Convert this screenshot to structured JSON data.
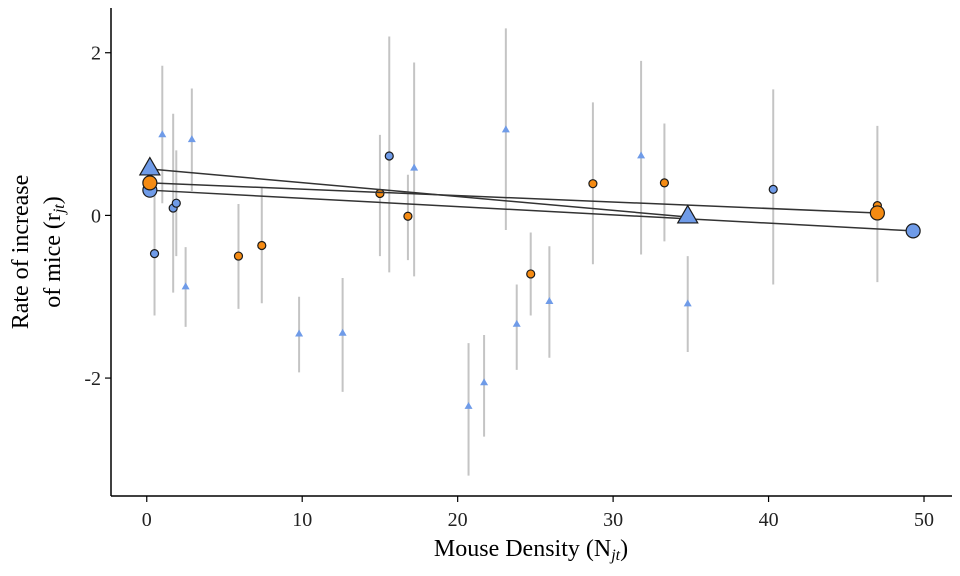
{
  "chart_data": {
    "type": "scatter",
    "xlabel": "Mouse Density (N",
    "xlabel_sub": "jt",
    "xlabel_end": ")",
    "ylabel_line1": "Rate of increase",
    "ylabel_line2": "of mice (r",
    "ylabel_sub": "jt",
    "ylabel_end": ")",
    "xlim": [
      -2.3,
      51.8
    ],
    "ylim": [
      -3.45,
      2.55
    ],
    "x_ticks": [
      0,
      10,
      20,
      30,
      40,
      50
    ],
    "x_tick_labels": [
      "0",
      "10",
      "20",
      "30",
      "40",
      "50"
    ],
    "y_ticks": [
      -2,
      0,
      2
    ],
    "y_tick_labels": [
      "-2",
      "0",
      "2"
    ],
    "grid": false,
    "colors": {
      "blue": "#6f9be8",
      "orange": "#f58b13",
      "error_bar": "#c4c4c4",
      "fit_line": "#333333"
    },
    "series": [
      {
        "marker": "circle",
        "color": "#6f9be8",
        "points": [
          {
            "x": 0.5,
            "y": -0.47,
            "lo": -1.23,
            "hi": 0.33
          },
          {
            "x": 1.7,
            "y": 0.09,
            "lo": -0.95,
            "hi": 1.25
          },
          {
            "x": 1.9,
            "y": 0.15,
            "lo": -0.5,
            "hi": 0.8
          },
          {
            "x": 15.6,
            "y": 0.73,
            "lo": -0.7,
            "hi": 2.2
          },
          {
            "x": 40.3,
            "y": 0.32,
            "lo": -0.85,
            "hi": 1.55
          }
        ]
      },
      {
        "marker": "circle",
        "color": "#f58b13",
        "points": [
          {
            "x": 5.9,
            "y": -0.5,
            "lo": -1.15,
            "hi": 0.14
          },
          {
            "x": 7.4,
            "y": -0.37,
            "lo": -1.08,
            "hi": 0.34
          },
          {
            "x": 15.0,
            "y": 0.27,
            "lo": -0.5,
            "hi": 0.99
          },
          {
            "x": 16.8,
            "y": -0.01,
            "lo": -0.55,
            "hi": 0.5
          },
          {
            "x": 24.7,
            "y": -0.72,
            "lo": -1.23,
            "hi": -0.21
          },
          {
            "x": 28.7,
            "y": 0.39,
            "lo": -0.6,
            "hi": 1.39
          },
          {
            "x": 33.3,
            "y": 0.4,
            "lo": -0.32,
            "hi": 1.13
          },
          {
            "x": 47.0,
            "y": 0.12,
            "lo": -0.82,
            "hi": 1.1
          }
        ]
      },
      {
        "marker": "triangle",
        "color": "#6f9be8",
        "points": [
          {
            "x": 1.0,
            "y": 0.99,
            "lo": 0.15,
            "hi": 1.84
          },
          {
            "x": 2.5,
            "y": -0.88,
            "lo": -1.37,
            "hi": -0.39
          },
          {
            "x": 2.9,
            "y": 0.93,
            "lo": 0.3,
            "hi": 1.56
          },
          {
            "x": 9.8,
            "y": -1.46,
            "lo": -1.93,
            "hi": -1.0
          },
          {
            "x": 12.6,
            "y": -1.45,
            "lo": -2.17,
            "hi": -0.77
          },
          {
            "x": 17.2,
            "y": 0.58,
            "lo": -0.75,
            "hi": 1.88
          },
          {
            "x": 20.7,
            "y": -2.35,
            "lo": -3.2,
            "hi": -1.57
          },
          {
            "x": 21.7,
            "y": -2.06,
            "lo": -2.72,
            "hi": -1.47
          },
          {
            "x": 23.1,
            "y": 1.05,
            "lo": -0.18,
            "hi": 2.3
          },
          {
            "x": 23.8,
            "y": -1.34,
            "lo": -1.9,
            "hi": -0.85
          },
          {
            "x": 25.9,
            "y": -1.06,
            "lo": -1.75,
            "hi": -0.38
          },
          {
            "x": 31.8,
            "y": 0.73,
            "lo": -0.48,
            "hi": 1.9
          },
          {
            "x": 34.8,
            "y": -1.09,
            "lo": -1.68,
            "hi": -0.5
          }
        ]
      }
    ],
    "fit_lines": [
      {
        "color": "#6f9be8",
        "marker": "circle",
        "x": [
          0.2,
          49.3
        ],
        "y": [
          0.31,
          -0.19
        ]
      },
      {
        "color": "#f58b13",
        "marker": "circle",
        "x": [
          0.2,
          47.0
        ],
        "y": [
          0.4,
          0.03
        ]
      },
      {
        "color": "#6f9be8",
        "marker": "triangle",
        "x": [
          0.2,
          34.8
        ],
        "y": [
          0.57,
          -0.02
        ]
      }
    ]
  }
}
